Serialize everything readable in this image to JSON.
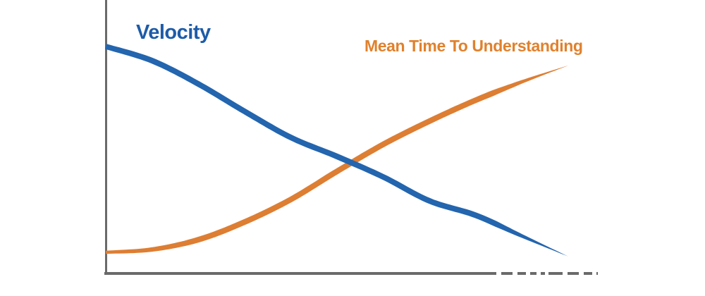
{
  "chart_data": {
    "type": "line",
    "title": "",
    "xlabel": "",
    "ylabel": "",
    "x_tick_labels": [],
    "y_tick_labels": [],
    "grid": false,
    "legend": "inline-curve-labels",
    "background_color": "#ffffff",
    "axis_color": "#6a6a6a",
    "axis_style": "left and bottom spines only, bottom spine fades into dashes at right end",
    "x": [
      0,
      1,
      2,
      3,
      4,
      5,
      6,
      7,
      8,
      9,
      10
    ],
    "ylim": [
      0,
      100
    ],
    "series": [
      {
        "name": "Velocity",
        "color": "#2365ae",
        "label_color": "#1d5ca8",
        "shape": "decreasing S-curve, tapered marker-style stroke",
        "values": [
          97.6,
          91.5,
          81.5,
          69.7,
          58.5,
          50.3,
          41.5,
          31.2,
          25.0,
          16.1,
          7.3
        ]
      },
      {
        "name": "Mean Time To Understanding",
        "color": "#dd7e33",
        "label_color": "#e0812d",
        "shape": "increasing S-curve, tapered marker-style stroke",
        "values": [
          9.1,
          10.3,
          14.5,
          22.1,
          31.8,
          43.9,
          55.5,
          65.5,
          74.5,
          82.4,
          89.4
        ]
      }
    ],
    "crossing_point_note": "curves intersect near the horizontal center, blue drawn on top"
  }
}
